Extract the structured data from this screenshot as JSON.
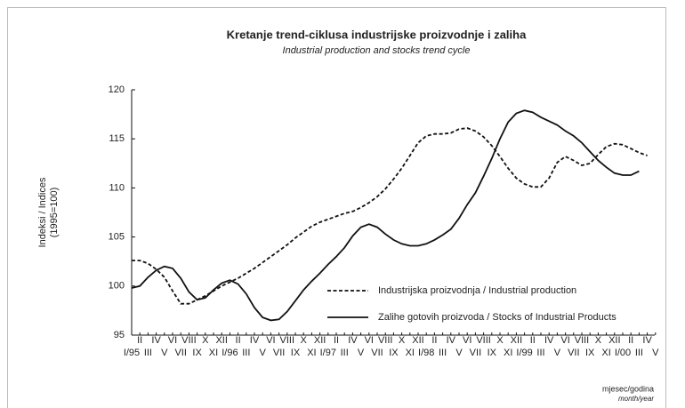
{
  "chart_data": {
    "type": "line",
    "title": "Kretanje trend-ciklusa industrijske proizvodnje i zaliha",
    "subtitle": "Industrial production and stocks trend cycle",
    "ylabel": [
      "Indeksi / Indices",
      "(1995=100)"
    ],
    "xlabel": [
      "mjesec/godina",
      "month/year"
    ],
    "categories": [
      "I/95",
      "II",
      "III",
      "IV",
      "V",
      "VI",
      "VII",
      "VIII",
      "IX",
      "X",
      "XI",
      "XII",
      "I/96",
      "II",
      "III",
      "IV",
      "V",
      "VI",
      "VII",
      "VIII",
      "IX",
      "X",
      "XI",
      "XII",
      "I/97",
      "II",
      "III",
      "IV",
      "V",
      "VI",
      "VII",
      "VIII",
      "IX",
      "X",
      "XI",
      "XII",
      "I/98",
      "II",
      "III",
      "IV",
      "V",
      "VI",
      "VII",
      "VIII",
      "IX",
      "X",
      "XI",
      "XII",
      "I/99",
      "II",
      "III",
      "IV",
      "V",
      "VI",
      "VII",
      "VIII",
      "IX",
      "X",
      "XI",
      "XII",
      "I/00",
      "II",
      "III",
      "IV",
      "V"
    ],
    "series": [
      {
        "name": "Industrijska proizvodnja / Industrial production",
        "color": "#111111",
        "dash": true,
        "values": [
          102.6,
          102.6,
          102.3,
          101.7,
          100.9,
          99.5,
          98.2,
          98.2,
          98.6,
          99.0,
          99.5,
          100.0,
          100.4,
          100.8,
          101.3,
          101.8,
          102.4,
          103.0,
          103.6,
          104.2,
          104.9,
          105.5,
          106.1,
          106.5,
          106.8,
          107.1,
          107.4,
          107.6,
          108.0,
          108.5,
          109.1,
          109.9,
          110.9,
          112.0,
          113.3,
          114.6,
          115.3,
          115.5,
          115.5,
          115.6,
          116.0,
          116.1,
          115.8,
          115.2,
          114.3,
          113.2,
          112.0,
          111.0,
          110.4,
          110.1,
          110.1,
          111.0,
          112.6,
          113.2,
          112.8,
          112.3,
          112.5,
          113.4,
          114.2,
          114.5,
          114.4,
          114.0,
          113.6,
          113.3,
          null
        ]
      },
      {
        "name": "Zalihe gotovih proizvoda / Stocks of Industrial Products",
        "color": "#111111",
        "dash": false,
        "values": [
          99.8,
          100.0,
          100.9,
          101.6,
          102.0,
          101.8,
          100.8,
          99.4,
          98.6,
          98.8,
          99.6,
          100.3,
          100.6,
          100.2,
          99.2,
          97.8,
          96.8,
          96.5,
          96.6,
          97.4,
          98.5,
          99.6,
          100.5,
          101.3,
          102.2,
          103.0,
          103.9,
          105.1,
          106.0,
          106.3,
          106.0,
          105.3,
          104.7,
          104.3,
          104.1,
          104.1,
          104.3,
          104.7,
          105.2,
          105.8,
          106.9,
          108.3,
          109.5,
          111.2,
          113.0,
          115.0,
          116.7,
          117.6,
          117.9,
          117.7,
          117.2,
          116.8,
          116.4,
          115.8,
          115.3,
          114.6,
          113.7,
          112.8,
          112.1,
          111.5,
          111.3,
          111.3,
          111.7,
          null,
          null
        ]
      }
    ],
    "ylim": [
      95,
      120
    ],
    "yticks": [
      95,
      100,
      105,
      110,
      115,
      120
    ],
    "grid": false,
    "legend": "lower right"
  }
}
